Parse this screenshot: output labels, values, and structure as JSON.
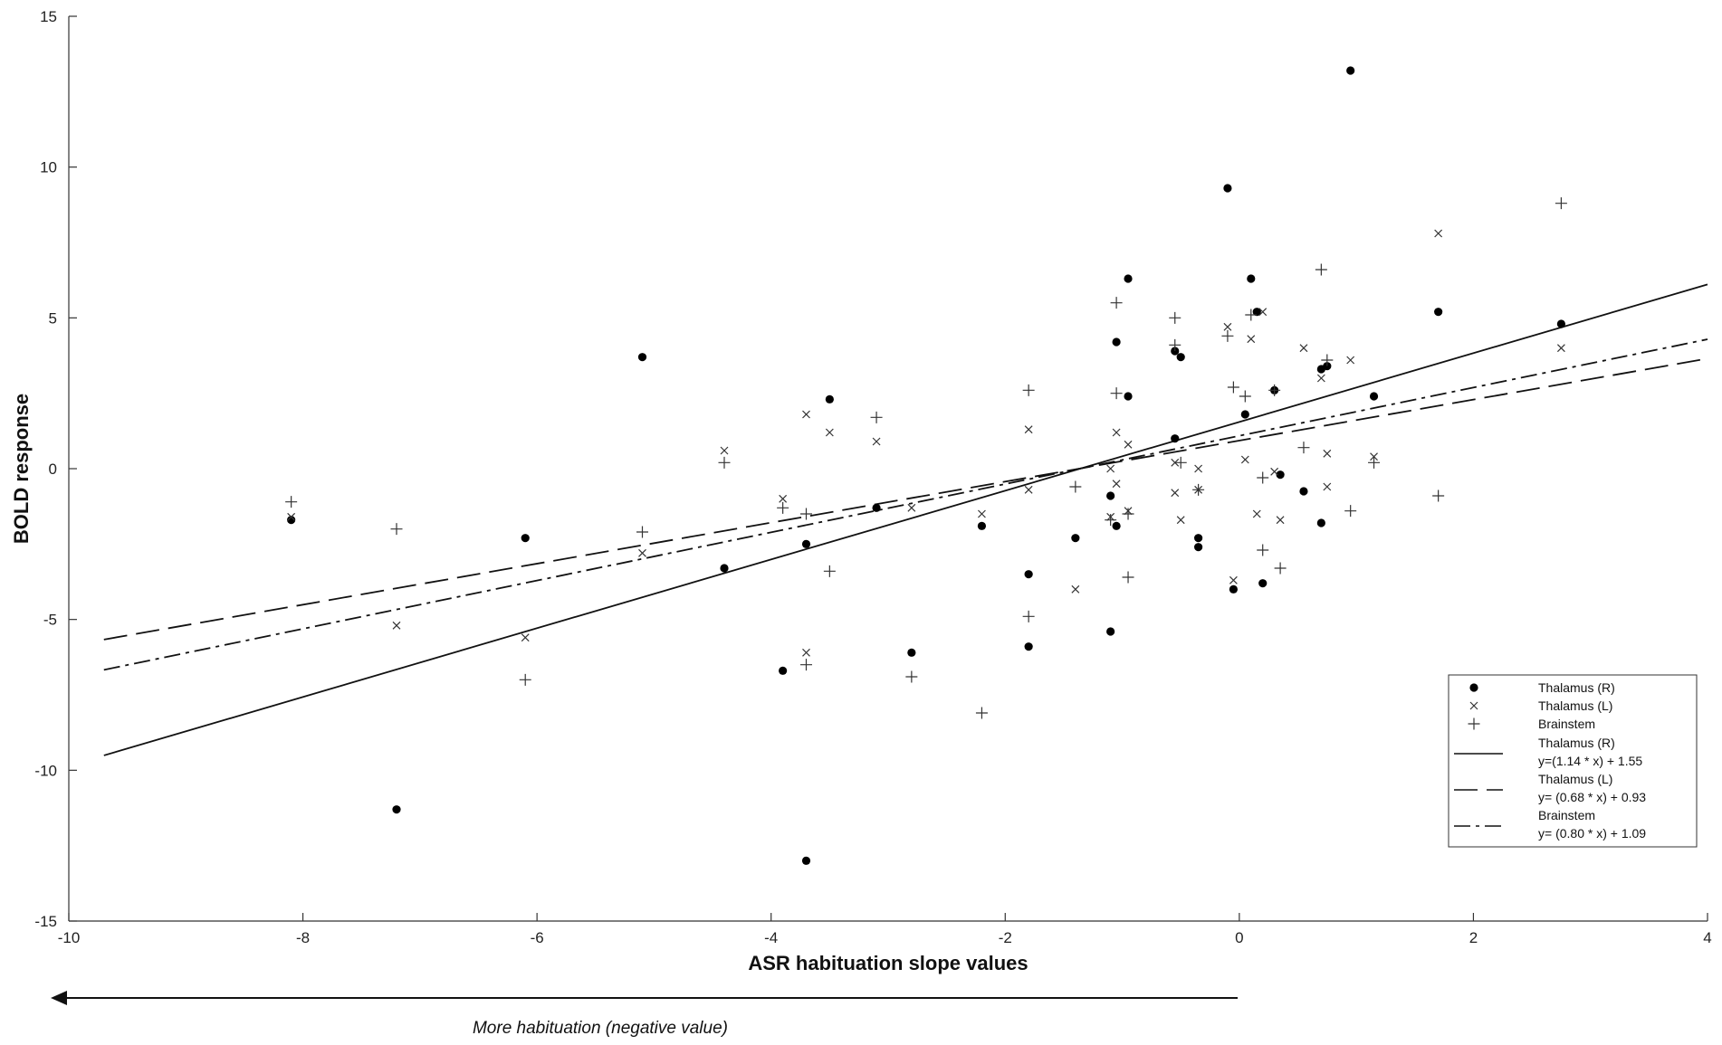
{
  "chart_data": {
    "type": "scatter",
    "xlabel": "ASR habituation slope values",
    "ylabel": "BOLD response",
    "xlim": [
      -10,
      4
    ],
    "ylim": [
      -15,
      15
    ],
    "xticks": [
      -10,
      -8,
      -6,
      -4,
      -2,
      0,
      2,
      4
    ],
    "yticks": [
      -15,
      -10,
      -5,
      0,
      5,
      10,
      15
    ],
    "grid": false,
    "legend_position": "bottom-right",
    "series": [
      {
        "name": "Thalamus (R)",
        "marker": "filled-circle",
        "points": [
          [
            -8.1,
            -1.7
          ],
          [
            -7.2,
            -11.3
          ],
          [
            -6.1,
            -2.3
          ],
          [
            -5.1,
            3.7
          ],
          [
            -4.4,
            -3.3
          ],
          [
            -3.9,
            -6.7
          ],
          [
            -3.7,
            -2.5
          ],
          [
            -3.7,
            -13.0
          ],
          [
            -3.5,
            2.3
          ],
          [
            -3.1,
            -1.3
          ],
          [
            -2.8,
            -6.1
          ],
          [
            -2.2,
            -1.9
          ],
          [
            -1.8,
            -3.5
          ],
          [
            -1.8,
            -5.9
          ],
          [
            -1.4,
            -2.3
          ],
          [
            -1.1,
            -0.9
          ],
          [
            -1.1,
            -5.4
          ],
          [
            -1.05,
            -1.9
          ],
          [
            -1.05,
            4.2
          ],
          [
            -0.95,
            2.4
          ],
          [
            -0.95,
            6.3
          ],
          [
            -0.55,
            3.9
          ],
          [
            -0.55,
            1.0
          ],
          [
            -0.5,
            3.7
          ],
          [
            -0.35,
            -2.3
          ],
          [
            -0.35,
            -2.6
          ],
          [
            -0.1,
            9.3
          ],
          [
            -0.05,
            -4.0
          ],
          [
            0.05,
            1.8
          ],
          [
            0.1,
            6.3
          ],
          [
            0.15,
            5.2
          ],
          [
            0.2,
            -3.8
          ],
          [
            0.3,
            2.6
          ],
          [
            0.35,
            -0.2
          ],
          [
            0.55,
            -0.75
          ],
          [
            0.7,
            3.3
          ],
          [
            0.75,
            3.4
          ],
          [
            0.7,
            -1.8
          ],
          [
            0.95,
            13.2
          ],
          [
            1.15,
            2.4
          ],
          [
            1.7,
            5.2
          ],
          [
            2.75,
            4.8
          ]
        ]
      },
      {
        "name": "Thalamus (L)",
        "marker": "x",
        "points": [
          [
            -8.1,
            -1.6
          ],
          [
            -7.2,
            -5.2
          ],
          [
            -6.1,
            -5.6
          ],
          [
            -5.1,
            -2.8
          ],
          [
            -4.4,
            0.6
          ],
          [
            -3.9,
            -1.0
          ],
          [
            -3.7,
            1.8
          ],
          [
            -3.7,
            -6.1
          ],
          [
            -3.5,
            1.2
          ],
          [
            -3.1,
            0.9
          ],
          [
            -2.8,
            -1.3
          ],
          [
            -2.2,
            -1.5
          ],
          [
            -1.8,
            1.3
          ],
          [
            -1.8,
            -0.7
          ],
          [
            -1.4,
            -4.0
          ],
          [
            -1.1,
            -1.6
          ],
          [
            -1.1,
            0.0
          ],
          [
            -1.05,
            -0.5
          ],
          [
            -1.05,
            1.2
          ],
          [
            -0.95,
            0.8
          ],
          [
            -0.95,
            -1.4
          ],
          [
            -0.55,
            0.2
          ],
          [
            -0.55,
            -0.8
          ],
          [
            -0.5,
            -1.7
          ],
          [
            -0.35,
            -0.7
          ],
          [
            -0.35,
            0.0
          ],
          [
            -0.1,
            4.7
          ],
          [
            -0.05,
            -3.7
          ],
          [
            0.05,
            0.3
          ],
          [
            0.1,
            4.3
          ],
          [
            0.15,
            -1.5
          ],
          [
            0.2,
            5.2
          ],
          [
            0.3,
            -0.1
          ],
          [
            0.35,
            -1.7
          ],
          [
            0.55,
            4.0
          ],
          [
            0.7,
            3.0
          ],
          [
            0.75,
            -0.6
          ],
          [
            0.75,
            0.5
          ],
          [
            0.95,
            3.6
          ],
          [
            1.15,
            0.4
          ],
          [
            1.7,
            7.8
          ],
          [
            2.75,
            4.0
          ]
        ]
      },
      {
        "name": "Brainstem",
        "marker": "plus",
        "points": [
          [
            -8.1,
            -1.1
          ],
          [
            -7.2,
            -2.0
          ],
          [
            -6.1,
            -7.0
          ],
          [
            -5.1,
            -2.1
          ],
          [
            -4.4,
            0.2
          ],
          [
            -3.9,
            -1.3
          ],
          [
            -3.7,
            -1.5
          ],
          [
            -3.7,
            -6.5
          ],
          [
            -3.5,
            -3.4
          ],
          [
            -3.1,
            1.7
          ],
          [
            -2.8,
            -6.9
          ],
          [
            -2.2,
            -8.1
          ],
          [
            -1.8,
            2.6
          ],
          [
            -1.8,
            -4.9
          ],
          [
            -1.4,
            -0.6
          ],
          [
            -1.1,
            -1.7
          ],
          [
            -1.05,
            5.5
          ],
          [
            -1.05,
            2.5
          ],
          [
            -0.95,
            -1.5
          ],
          [
            -0.95,
            -3.6
          ],
          [
            -0.55,
            5.0
          ],
          [
            -0.55,
            4.1
          ],
          [
            -0.5,
            0.2
          ],
          [
            -0.35,
            -0.7
          ],
          [
            -0.1,
            4.4
          ],
          [
            -0.05,
            2.7
          ],
          [
            0.05,
            2.4
          ],
          [
            0.1,
            5.1
          ],
          [
            0.2,
            -0.3
          ],
          [
            0.2,
            -2.7
          ],
          [
            0.3,
            2.6
          ],
          [
            0.35,
            -3.3
          ],
          [
            0.55,
            0.7
          ],
          [
            0.7,
            6.6
          ],
          [
            0.75,
            3.6
          ],
          [
            0.95,
            -1.4
          ],
          [
            1.15,
            0.2
          ],
          [
            1.7,
            -0.9
          ],
          [
            2.75,
            8.8
          ]
        ]
      }
    ],
    "fits": [
      {
        "name": "Thalamus (R)",
        "equation": "y=(1.14 * x) + 1.55",
        "slope": 1.14,
        "intercept": 1.55,
        "style": "solid"
      },
      {
        "name": "Thalamus (L)",
        "equation": "y= (0.68 * x) + 0.93",
        "slope": 0.68,
        "intercept": 0.93,
        "style": "dashed"
      },
      {
        "name": "Brainstem",
        "equation": "y= (0.80 * x) + 1.09",
        "slope": 0.8,
        "intercept": 1.09,
        "style": "dash-dot"
      }
    ],
    "annotation": "More habituation (negative value)"
  }
}
